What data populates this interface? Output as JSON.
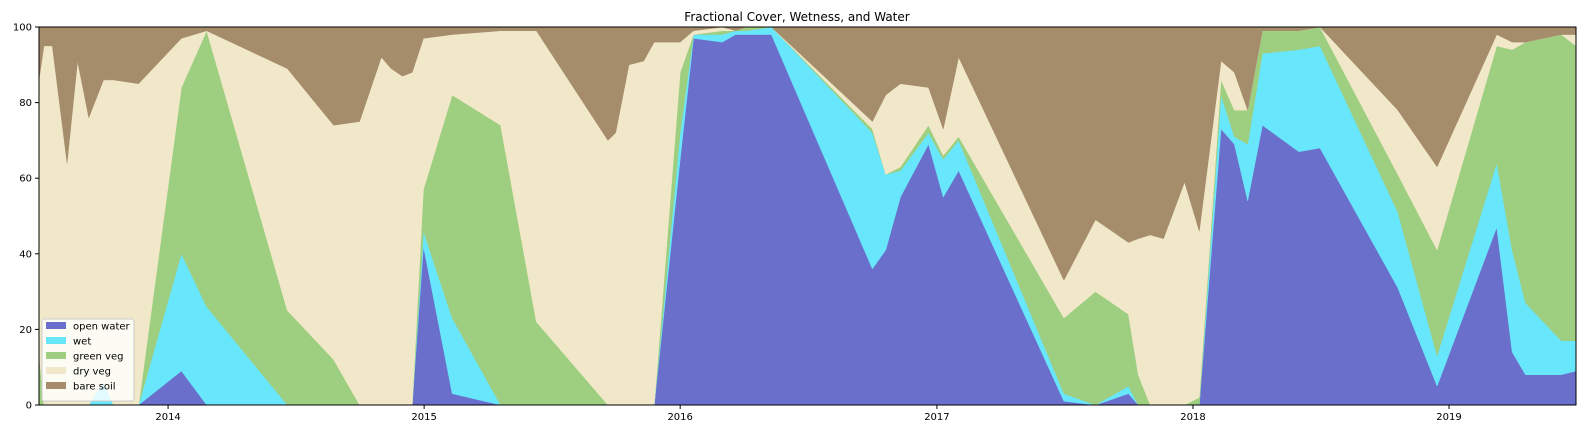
{
  "chart_data": {
    "type": "area",
    "stacked": true,
    "title": "Fractional Cover, Wetness, and Water",
    "xlabel": "",
    "ylabel": "",
    "x_axis": "date",
    "xlim": [
      "2013-07-01",
      "2019-07-01"
    ],
    "ylim": [
      0,
      100
    ],
    "yticks": [
      0,
      20,
      40,
      60,
      80,
      100
    ],
    "xticks": [
      "2014",
      "2015",
      "2016",
      "2017",
      "2018",
      "2019"
    ],
    "xtick_dates": [
      "2014-01-01",
      "2015-01-01",
      "2016-01-01",
      "2017-01-01",
      "2018-01-01",
      "2019-01-01"
    ],
    "grid": false,
    "legend_position": "lower-left",
    "x": [
      "2013-07-01",
      "2013-07-08",
      "2013-07-20",
      "2013-08-10",
      "2013-08-25",
      "2013-09-10",
      "2013-10-01",
      "2013-10-15",
      "2013-11-20",
      "2014-01-20",
      "2014-02-25",
      "2014-06-20",
      "2014-08-25",
      "2014-10-01",
      "2014-11-01",
      "2014-11-15",
      "2014-12-01",
      "2014-12-15",
      "2014-12-31",
      "2015-02-10",
      "2015-04-20",
      "2015-06-10",
      "2015-09-20",
      "2015-10-01",
      "2015-10-20",
      "2015-11-10",
      "2015-11-25",
      "2016-01-01",
      "2016-01-20",
      "2016-03-01",
      "2016-03-20",
      "2016-04-05",
      "2016-05-10",
      "2016-10-01",
      "2016-10-20",
      "2016-11-10",
      "2016-12-20",
      "2017-01-10",
      "2017-02-01",
      "2017-07-01",
      "2017-08-15",
      "2017-10-01",
      "2017-10-15",
      "2017-11-01",
      "2017-11-20",
      "2017-12-20",
      "2018-01-10",
      "2018-02-10",
      "2018-03-01",
      "2018-03-20",
      "2018-04-10",
      "2018-06-01",
      "2018-07-01",
      "2018-10-20",
      "2018-12-15",
      "2019-03-10",
      "2019-04-01",
      "2019-04-20",
      "2019-06-10",
      "2019-07-01"
    ],
    "series": [
      {
        "name": "open water",
        "color": "#6a6fcb",
        "values": [
          0,
          0,
          0,
          0,
          0,
          0,
          0,
          0,
          0,
          9,
          0,
          0,
          0,
          0,
          0,
          0,
          0,
          0,
          42,
          3,
          0,
          0,
          0,
          0,
          0,
          0,
          0,
          65,
          97,
          96,
          98,
          98,
          98,
          36,
          41,
          55,
          69,
          55,
          62,
          1,
          0,
          3,
          0,
          0,
          0,
          0,
          0,
          73,
          69,
          54,
          74,
          67,
          68,
          31,
          5,
          47,
          14,
          8,
          8,
          9
        ]
      },
      {
        "name": "wet",
        "color": "#68e6fc",
        "values": [
          0,
          0,
          0,
          0,
          0,
          0,
          6,
          0,
          0,
          31,
          26,
          0,
          0,
          0,
          0,
          0,
          0,
          0,
          4,
          20,
          0,
          0,
          0,
          0,
          0,
          0,
          0,
          7,
          1,
          2,
          1,
          1,
          2,
          36,
          20,
          7,
          3,
          10,
          8,
          2,
          0,
          2,
          0,
          0,
          0,
          0,
          0,
          9,
          2,
          15,
          19,
          27,
          27,
          20,
          8,
          17,
          27,
          19,
          9,
          8
        ]
      },
      {
        "name": "green veg",
        "color": "#9ece80",
        "values": [
          14,
          0,
          0,
          0,
          0,
          0,
          0,
          0,
          0,
          44,
          73,
          25,
          12,
          0,
          0,
          0,
          0,
          0,
          11,
          59,
          74,
          22,
          0,
          0,
          0,
          0,
          0,
          16,
          0,
          1,
          0,
          1,
          0,
          1,
          0,
          1,
          2,
          1,
          1,
          20,
          30,
          19,
          8,
          0,
          0,
          0,
          2,
          4,
          7,
          9,
          6,
          5,
          5,
          10,
          28,
          31,
          53,
          69,
          81,
          78
        ]
      },
      {
        "name": "dry veg",
        "color": "#f1e8c9",
        "values": [
          72,
          95,
          95,
          64,
          91,
          76,
          80,
          86,
          85,
          13,
          0,
          64,
          62,
          75,
          92,
          89,
          87,
          88,
          40,
          16,
          25,
          77,
          70,
          72,
          90,
          91,
          96,
          8,
          1,
          1,
          0,
          0,
          0,
          2,
          21,
          22,
          10,
          7,
          21,
          10,
          19,
          19,
          36,
          45,
          44,
          59,
          44,
          5,
          10,
          0,
          0,
          0,
          0,
          17,
          22,
          3,
          2,
          0,
          0,
          3
        ]
      },
      {
        "name": "bare soil",
        "color": "#a58c6b",
        "values": [
          14,
          5,
          5,
          36,
          9,
          24,
          14,
          14,
          15,
          3,
          1,
          11,
          26,
          25,
          8,
          11,
          13,
          12,
          3,
          2,
          1,
          1,
          30,
          28,
          10,
          9,
          4,
          4,
          1,
          0,
          1,
          0,
          0,
          25,
          18,
          15,
          16,
          27,
          8,
          67,
          51,
          57,
          56,
          55,
          56,
          41,
          54,
          9,
          12,
          22,
          1,
          1,
          0,
          22,
          37,
          2,
          4,
          4,
          2,
          2
        ]
      }
    ]
  }
}
